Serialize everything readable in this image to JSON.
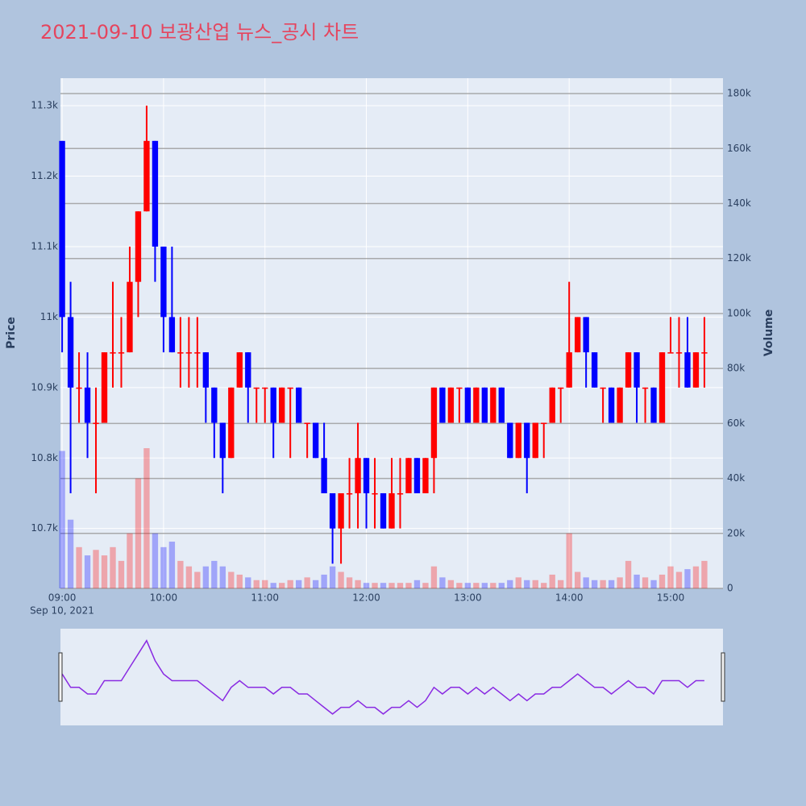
{
  "chart_data": {
    "type": "candlestick",
    "title": "2021-09-10 보광산업 뉴스_공시 차트",
    "y_label": "Price",
    "y2_label": "Volume",
    "x_date_label": "Sep 10, 2021",
    "increasing_color": "#ff0000",
    "decreasing_color": "#0000ff",
    "xlim": [
      "08:59",
      "15:31"
    ],
    "xticks": [
      "09:00",
      "10:00",
      "11:00",
      "12:00",
      "13:00",
      "14:00",
      "15:00"
    ],
    "ylim": [
      10615,
      11339
    ],
    "yticks": [
      {
        "value": 10700,
        "label": "10.7k"
      },
      {
        "value": 10800,
        "label": "10.8k"
      },
      {
        "value": 10900,
        "label": "10.9k"
      },
      {
        "value": 11000,
        "label": "11k"
      },
      {
        "value": 11100,
        "label": "11.1k"
      },
      {
        "value": 11200,
        "label": "11.2k"
      },
      {
        "value": 11300,
        "label": "11.3k"
      }
    ],
    "y2lim": [
      0,
      185600
    ],
    "y2ticks": [
      0,
      {
        "value": 20000,
        "label": "20k"
      },
      {
        "value": 40000,
        "label": "40k"
      },
      {
        "value": 60000,
        "label": "60k"
      },
      {
        "value": 80000,
        "label": "80k"
      },
      {
        "value": 100000,
        "label": "100k"
      },
      {
        "value": 120000,
        "label": "120k"
      },
      {
        "value": 140000,
        "label": "140k"
      },
      {
        "value": 160000,
        "label": "160k"
      },
      {
        "value": 180000,
        "label": "180k"
      }
    ],
    "x": [
      "09:00",
      "09:05",
      "09:10",
      "09:15",
      "09:20",
      "09:25",
      "09:30",
      "09:35",
      "09:40",
      "09:45",
      "09:50",
      "09:55",
      "10:00",
      "10:05",
      "10:10",
      "10:15",
      "10:20",
      "10:25",
      "10:30",
      "10:35",
      "10:40",
      "10:45",
      "10:50",
      "10:55",
      "11:00",
      "11:05",
      "11:10",
      "11:15",
      "11:20",
      "11:25",
      "11:30",
      "11:35",
      "11:40",
      "11:45",
      "11:50",
      "11:55",
      "12:00",
      "12:05",
      "12:10",
      "12:15",
      "12:20",
      "12:25",
      "12:30",
      "12:35",
      "12:40",
      "12:45",
      "12:50",
      "12:55",
      "13:00",
      "13:05",
      "13:10",
      "13:15",
      "13:20",
      "13:25",
      "13:30",
      "13:35",
      "13:40",
      "13:45",
      "13:50",
      "13:55",
      "14:00",
      "14:05",
      "14:10",
      "14:15",
      "14:20",
      "14:25",
      "14:30",
      "14:35",
      "14:40",
      "14:45",
      "14:50",
      "14:55",
      "15:00",
      "15:05",
      "15:10",
      "15:15",
      "15:20"
    ],
    "open": [
      11250,
      11000,
      10900,
      10900,
      10850,
      10850,
      10950,
      10950,
      10950,
      11050,
      11150,
      11250,
      11100,
      11000,
      10950,
      10950,
      10950,
      10950,
      10900,
      10850,
      10800,
      10900,
      10950,
      10900,
      10900,
      10900,
      10850,
      10900,
      10900,
      10850,
      10850,
      10800,
      10750,
      10700,
      10750,
      10750,
      10800,
      10750,
      10750,
      10700,
      10750,
      10750,
      10800,
      10750,
      10800,
      10900,
      10850,
      10900,
      10900,
      10850,
      10900,
      10850,
      10900,
      10850,
      10800,
      10850,
      10800,
      10850,
      10850,
      10900,
      10900,
      10950,
      11000,
      10950,
      10900,
      10900,
      10850,
      10900,
      10950,
      10900,
      10900,
      10850,
      10950,
      10950,
      10950,
      10900,
      10950
    ],
    "high": [
      11250,
      11050,
      10950,
      10950,
      10900,
      10950,
      11050,
      11000,
      11100,
      11150,
      11300,
      11250,
      11100,
      11100,
      11000,
      11000,
      11000,
      10950,
      10900,
      10850,
      10900,
      10950,
      10950,
      10900,
      10900,
      10900,
      10900,
      10900,
      10900,
      10850,
      10850,
      10850,
      10750,
      10750,
      10800,
      10850,
      10800,
      10800,
      10750,
      10800,
      10800,
      10800,
      10800,
      10800,
      10900,
      10900,
      10900,
      10900,
      10900,
      10900,
      10900,
      10900,
      10900,
      10850,
      10850,
      10850,
      10850,
      10850,
      10900,
      10900,
      11050,
      11000,
      11000,
      10950,
      10900,
      10900,
      10900,
      10950,
      10950,
      10900,
      10900,
      10950,
      11000,
      11000,
      11000,
      10950,
      11000
    ],
    "low": [
      10950,
      10750,
      10850,
      10800,
      10750,
      10850,
      10900,
      10900,
      10950,
      11000,
      11150,
      11050,
      10950,
      10950,
      10900,
      10900,
      10900,
      10850,
      10800,
      10750,
      10800,
      10900,
      10850,
      10850,
      10850,
      10800,
      10850,
      10800,
      10850,
      10800,
      10800,
      10750,
      10650,
      10650,
      10700,
      10700,
      10700,
      10700,
      10700,
      10700,
      10700,
      10750,
      10750,
      10750,
      10750,
      10850,
      10850,
      10850,
      10850,
      10850,
      10850,
      10850,
      10850,
      10800,
      10800,
      10750,
      10800,
      10800,
      10850,
      10850,
      10900,
      10950,
      10900,
      10900,
      10850,
      10850,
      10850,
      10900,
      10850,
      10850,
      10850,
      10850,
      10950,
      10900,
      10900,
      10900,
      10900
    ],
    "close": [
      11000,
      10900,
      10900,
      10850,
      10850,
      10950,
      10950,
      10950,
      11050,
      11150,
      11250,
      11100,
      11000,
      10950,
      10950,
      10950,
      10950,
      10900,
      10850,
      10800,
      10900,
      10950,
      10900,
      10900,
      10900,
      10850,
      10900,
      10900,
      10850,
      10850,
      10800,
      10750,
      10700,
      10750,
      10750,
      10800,
      10750,
      10750,
      10700,
      10750,
      10750,
      10800,
      10750,
      10800,
      10900,
      10850,
      10900,
      10900,
      10850,
      10900,
      10850,
      10900,
      10850,
      10800,
      10850,
      10800,
      10850,
      10850,
      10900,
      10900,
      10950,
      11000,
      10950,
      10900,
      10900,
      10850,
      10900,
      10950,
      10900,
      10900,
      10850,
      10950,
      10950,
      10950,
      10900,
      10950,
      10950
    ],
    "volume": [
      50000,
      25000,
      15000,
      12000,
      14000,
      12000,
      15000,
      10000,
      20000,
      40000,
      51000,
      20000,
      15000,
      17000,
      10000,
      8000,
      6000,
      8000,
      10000,
      8000,
      6000,
      5000,
      4000,
      3000,
      3000,
      2000,
      2000,
      3000,
      3000,
      4000,
      3000,
      5000,
      8000,
      6000,
      4000,
      3000,
      2000,
      2000,
      2000,
      2000,
      2000,
      2000,
      3000,
      2000,
      8000,
      4000,
      3000,
      2000,
      2000,
      2000,
      2000,
      2000,
      2000,
      3000,
      4000,
      3000,
      3000,
      2000,
      5000,
      3000,
      20000,
      6000,
      4000,
      3000,
      3000,
      3000,
      4000,
      10000,
      5000,
      4000,
      3000,
      5000,
      8000,
      6000,
      7000,
      8000,
      10000
    ]
  }
}
